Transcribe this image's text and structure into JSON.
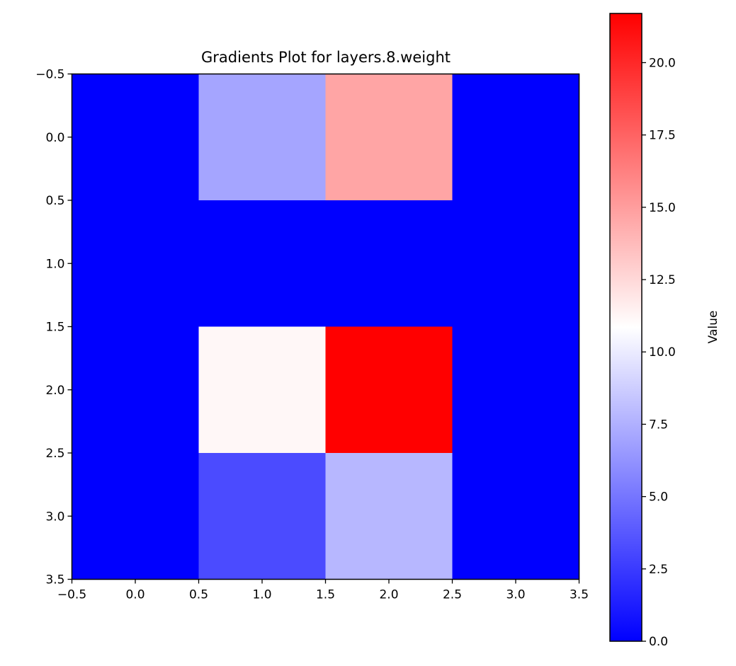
{
  "chart_data": {
    "type": "heatmap",
    "title": "Gradients Plot for layers.8.weight",
    "xlabel": "",
    "ylabel": "",
    "rows": 4,
    "cols": 4,
    "values": [
      [
        0.0,
        7.0,
        14.7,
        0.0
      ],
      [
        0.0,
        0.0,
        0.0,
        0.0
      ],
      [
        0.0,
        11.2,
        21.7,
        0.0
      ],
      [
        0.0,
        3.2,
        7.8,
        0.0
      ]
    ],
    "x_ticks": [
      "−0.5",
      "0.0",
      "0.5",
      "1.0",
      "1.5",
      "2.0",
      "2.5",
      "3.0",
      "3.5"
    ],
    "y_ticks": [
      "−0.5",
      "0.0",
      "0.5",
      "1.0",
      "1.5",
      "2.0",
      "2.5",
      "3.0",
      "3.5"
    ],
    "xlim": [
      -0.5,
      3.5
    ],
    "ylim": [
      3.5,
      -0.5
    ],
    "colormap": "bwr",
    "colormap_colors": [
      "#0000ff",
      "#ffffff",
      "#ff0000"
    ],
    "colorbar": {
      "label": "Value",
      "range": [
        0.0,
        21.7
      ],
      "ticks": [
        {
          "value": 0.0,
          "label": "0.0"
        },
        {
          "value": 2.5,
          "label": "2.5"
        },
        {
          "value": 5.0,
          "label": "5.0"
        },
        {
          "value": 7.5,
          "label": "7.5"
        },
        {
          "value": 10.0,
          "label": "10.0"
        },
        {
          "value": 12.5,
          "label": "12.5"
        },
        {
          "value": 15.0,
          "label": "15.0"
        },
        {
          "value": 17.5,
          "label": "17.5"
        },
        {
          "value": 20.0,
          "label": "20.0"
        }
      ]
    },
    "grid": false
  }
}
